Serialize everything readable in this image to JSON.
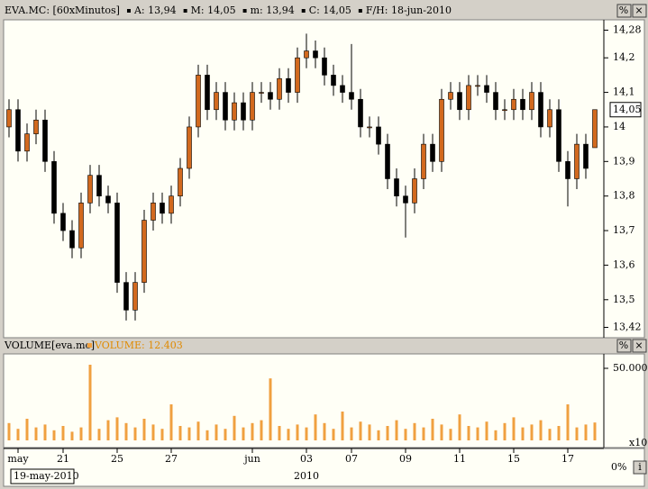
{
  "header": {
    "symbol": "EVA.MC: [60xMinutos]",
    "items": [
      "A: 13,94",
      "M: 14,05",
      "m: 13,94",
      "C: 14,05",
      "F/H: 18-jun-2010"
    ],
    "buttons": [
      "%",
      "×"
    ]
  },
  "chart_data": [
    {
      "type": "candlestick",
      "up_color": "#d2691e",
      "down_color": "#000000",
      "open": [
        14.0,
        14.05,
        13.93,
        13.98,
        14.02,
        13.9,
        13.75,
        13.7,
        13.65,
        13.78,
        13.86,
        13.8,
        13.78,
        13.55,
        13.47,
        13.55,
        13.73,
        13.78,
        13.75,
        13.8,
        13.88,
        14.0,
        14.15,
        14.05,
        14.1,
        14.02,
        14.07,
        14.02,
        14.1,
        14.1,
        14.08,
        14.14,
        14.1,
        14.2,
        14.22,
        14.2,
        14.15,
        14.12,
        14.1,
        14.08,
        14.0,
        14.0,
        13.95,
        13.85,
        13.8,
        13.78,
        13.85,
        13.95,
        13.9,
        14.08,
        14.1,
        14.05,
        14.12,
        14.12,
        14.1,
        14.05,
        14.05,
        14.08,
        14.05,
        14.1,
        14.0,
        14.05,
        13.9,
        13.85,
        13.95,
        13.94
      ],
      "high": [
        14.08,
        14.08,
        14.01,
        14.05,
        14.05,
        13.93,
        13.78,
        13.73,
        13.81,
        13.89,
        13.89,
        13.83,
        13.81,
        13.58,
        13.58,
        13.76,
        13.81,
        13.81,
        13.83,
        13.91,
        14.03,
        14.18,
        14.18,
        14.13,
        14.13,
        14.1,
        14.1,
        14.13,
        14.13,
        14.13,
        14.17,
        14.17,
        14.23,
        14.27,
        14.25,
        14.23,
        14.18,
        14.15,
        14.24,
        14.11,
        14.03,
        14.03,
        13.98,
        13.88,
        13.83,
        13.88,
        13.98,
        13.98,
        14.11,
        14.13,
        14.13,
        14.15,
        14.15,
        14.15,
        14.13,
        14.08,
        14.11,
        14.11,
        14.13,
        14.13,
        14.08,
        14.08,
        13.93,
        13.98,
        13.98,
        14.05
      ],
      "low": [
        13.97,
        13.9,
        13.9,
        13.95,
        13.87,
        13.72,
        13.67,
        13.62,
        13.62,
        13.75,
        13.77,
        13.75,
        13.52,
        13.44,
        13.44,
        13.52,
        13.7,
        13.72,
        13.72,
        13.77,
        13.85,
        13.97,
        14.02,
        14.02,
        13.99,
        13.99,
        13.99,
        13.99,
        14.07,
        14.05,
        14.05,
        14.07,
        14.07,
        14.17,
        14.17,
        14.12,
        14.09,
        14.07,
        14.05,
        13.97,
        13.97,
        13.92,
        13.82,
        13.77,
        13.68,
        13.75,
        13.82,
        13.87,
        13.87,
        14.05,
        14.02,
        14.02,
        14.09,
        14.07,
        14.02,
        14.02,
        14.02,
        14.02,
        14.02,
        13.97,
        13.97,
        13.87,
        13.77,
        13.82,
        13.85,
        13.94
      ],
      "close": [
        14.05,
        13.93,
        13.98,
        14.02,
        13.9,
        13.75,
        13.7,
        13.65,
        13.78,
        13.86,
        13.8,
        13.78,
        13.55,
        13.47,
        13.55,
        13.73,
        13.78,
        13.75,
        13.8,
        13.88,
        14.0,
        14.15,
        14.05,
        14.1,
        14.02,
        14.07,
        14.02,
        14.1,
        14.1,
        14.08,
        14.14,
        14.1,
        14.2,
        14.22,
        14.2,
        14.15,
        14.12,
        14.1,
        14.08,
        14.0,
        14.0,
        13.95,
        13.85,
        13.8,
        13.78,
        13.85,
        13.95,
        13.9,
        14.08,
        14.1,
        14.05,
        14.12,
        14.12,
        14.1,
        14.05,
        14.05,
        14.08,
        14.05,
        14.1,
        14.0,
        14.05,
        13.9,
        13.85,
        13.95,
        13.88,
        14.05
      ],
      "last_label": "14,05",
      "xlim": [
        -0.5,
        65.5
      ],
      "ylim": [
        13.39,
        14.31
      ],
      "yticks": [
        {
          "value": 14.28,
          "label": "14,28"
        },
        {
          "value": 14.2,
          "label": "14,2"
        },
        {
          "value": 14.1,
          "label": "14,1"
        },
        {
          "value": 14,
          "label": "14"
        },
        {
          "value": 13.9,
          "label": "13,9"
        },
        {
          "value": 13.8,
          "label": "13,8"
        },
        {
          "value": 13.7,
          "label": "13,7"
        },
        {
          "value": 13.6,
          "label": "13,6"
        },
        {
          "value": 13.5,
          "label": "13,5"
        },
        {
          "value": 13.42,
          "label": "13,42"
        }
      ]
    },
    {
      "type": "bar",
      "title": "VOLUME[eva.mc]",
      "legend": "VOLUME: 12.403",
      "color": "#f0a040",
      "values": [
        12000,
        8000,
        15000,
        9000,
        11000,
        7000,
        10000,
        6000,
        9000,
        52500,
        8000,
        14000,
        16000,
        12000,
        9000,
        15000,
        11000,
        8000,
        25000,
        10000,
        9000,
        13000,
        7000,
        11000,
        8000,
        17000,
        9000,
        12000,
        14000,
        43000,
        10000,
        8000,
        11000,
        9000,
        18000,
        12000,
        8000,
        20000,
        9000,
        13000,
        11000,
        7000,
        10000,
        14000,
        8000,
        12000,
        9000,
        15000,
        11000,
        8000,
        18000,
        10000,
        9000,
        13000,
        7000,
        12000,
        16000,
        9000,
        11000,
        14000,
        8000,
        10000,
        25000,
        9000,
        11000,
        12403
      ],
      "xlim": [
        -0.5,
        65.5
      ],
      "ylim": [
        0,
        60000
      ],
      "yticks": [
        {
          "value": 50000,
          "label": "50.000"
        }
      ],
      "scale_label": "x10",
      "buttons": [
        "%",
        "×"
      ]
    }
  ],
  "x_axis": {
    "xticks": [
      {
        "value": 1,
        "label": "may"
      },
      {
        "value": 6,
        "label": "21"
      },
      {
        "value": 12,
        "label": "25"
      },
      {
        "value": 18,
        "label": "27"
      },
      {
        "value": 27,
        "label": "jun"
      },
      {
        "value": 33,
        "label": "03"
      },
      {
        "value": 38,
        "label": "07"
      },
      {
        "value": 44,
        "label": "09"
      },
      {
        "value": 50,
        "label": "11"
      },
      {
        "value": 56,
        "label": "15"
      },
      {
        "value": 62,
        "label": "17"
      }
    ],
    "date_box": "19-may-2010",
    "year": "2010",
    "zoom": "0%",
    "info": "i"
  }
}
